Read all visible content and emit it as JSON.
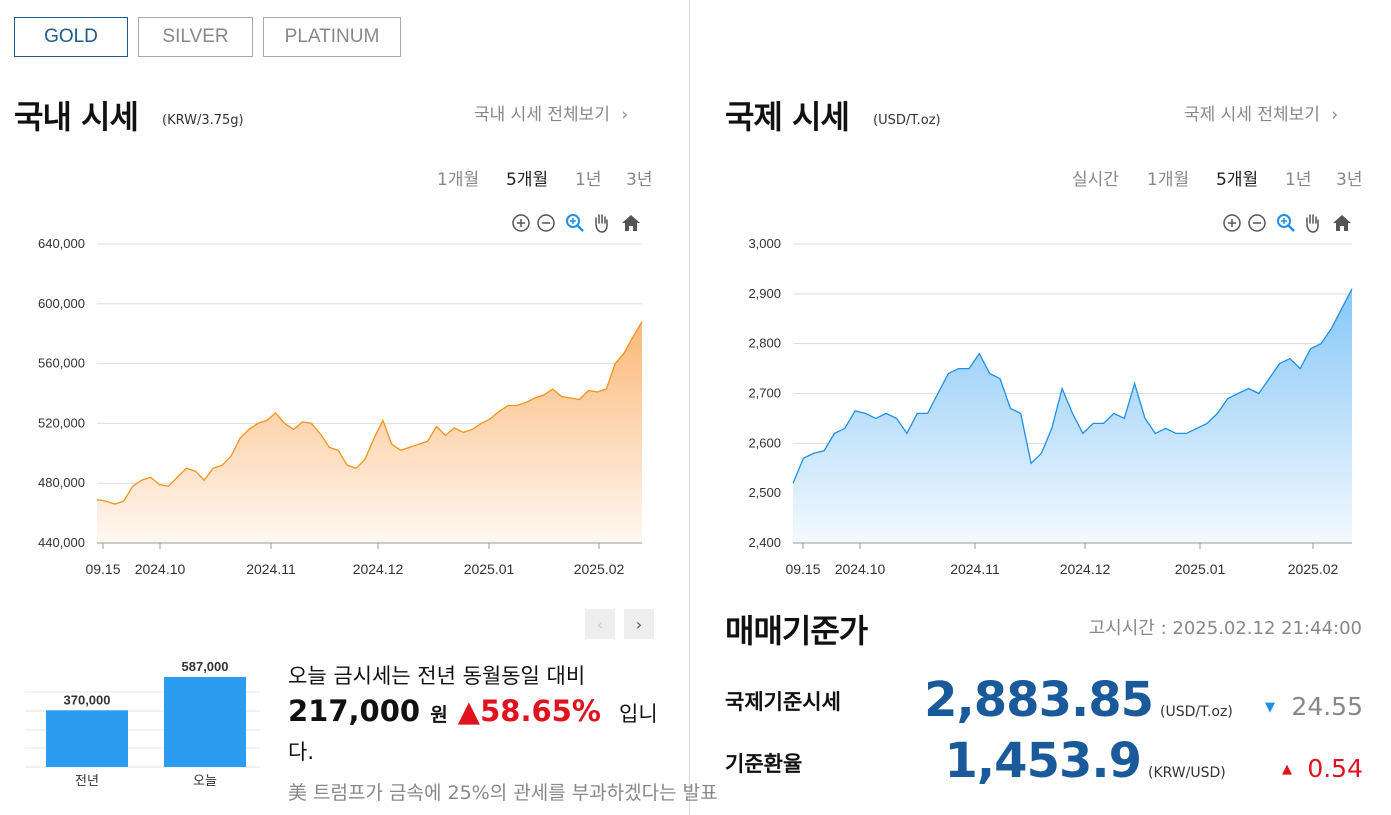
{
  "tabs": [
    "GOLD",
    "SILVER",
    "PLATINUM"
  ],
  "domestic": {
    "title": "국내 시세",
    "unit": "(KRW/3.75g)",
    "view_all": "국내 시세 전체보기",
    "ranges": [
      "1개월",
      "5개월",
      "1년",
      "3년"
    ],
    "selected_range": "5개월"
  },
  "international": {
    "title": "국제 시세",
    "unit": "(USD/T.oz)",
    "view_all": "국제 시세 전체보기",
    "ranges": [
      "실시간",
      "1개월",
      "5개월",
      "1년",
      "3년"
    ],
    "selected_range": "5개월"
  },
  "chart_tools": [
    "zoom-in-icon",
    "zoom-out-icon",
    "magnifier-icon",
    "pan-hand-icon",
    "home-icon"
  ],
  "comparison": {
    "bars": [
      {
        "label": "전년",
        "value": 370000,
        "display": "370,000"
      },
      {
        "label": "오늘",
        "value": 587000,
        "display": "587,000"
      }
    ],
    "sentence_1": "오늘 금시세는 전년 동월동일 대비",
    "diff": "217,000",
    "won": "원",
    "pct": "▲58.65%",
    "tail": "입니",
    "tail2": "다.",
    "news": "美 트럼프가 금속에 25%의 관세를 부과하겠다는 발표"
  },
  "base_price": {
    "title": "매매기준가",
    "notice": "고시시간 : 2025.02.12 21:44:00",
    "rows": [
      {
        "label": "국제기준시세",
        "value": "2,883.85",
        "unit": "(USD/T.oz)",
        "arrow": "▼",
        "change": "24.55",
        "dir": "down"
      },
      {
        "label": "기준환율",
        "value": "1,453.9",
        "unit": "(KRW/USD)",
        "arrow": "▲",
        "change": "0.54",
        "dir": "up"
      }
    ]
  },
  "colors": {
    "accent": "#1e5a8c",
    "orange": "#f5921e",
    "blue_line": "#1e90e6",
    "up": "#e0121e",
    "down": "#1e90e6",
    "bar": "#2c9cf0"
  },
  "chart_data": [
    {
      "type": "area",
      "title": "",
      "ylabel": "",
      "ylim": [
        440000,
        640000
      ],
      "y_ticks": [
        "640,000",
        "600,000",
        "560,000",
        "520,000",
        "480,000",
        "440,000"
      ],
      "x_ticks": [
        "09.15",
        "2024.10",
        "2024.11",
        "2024.12",
        "2025.01",
        "2025.02"
      ],
      "series": [
        {
          "values": [
            469000,
            468000,
            466000,
            468000,
            478000,
            482000,
            484000,
            479000,
            478000,
            484000,
            490000,
            488000,
            482000,
            490000,
            492000,
            498000,
            510000,
            516000,
            520000,
            522000,
            527000,
            520000,
            516000,
            521000,
            520000,
            513000,
            504000,
            502000,
            492000,
            490000,
            496000,
            510000,
            522000,
            506000,
            502000,
            504000,
            506000,
            508000,
            518000,
            512000,
            517000,
            514000,
            516000,
            520000,
            523000,
            528000,
            532000,
            532000,
            534000,
            537000,
            539000,
            543000,
            538000,
            537000,
            536000,
            542000,
            541000,
            543000,
            560000,
            567000,
            578000,
            588000
          ]
        }
      ]
    },
    {
      "type": "area",
      "title": "",
      "ylabel": "",
      "ylim": [
        2400,
        3000
      ],
      "y_ticks": [
        "3,000",
        "2,900",
        "2,800",
        "2,700",
        "2,600",
        "2,500",
        "2,400"
      ],
      "x_ticks": [
        "09.15",
        "2024.10",
        "2024.11",
        "2024.12",
        "2025.01",
        "2025.02"
      ],
      "series": [
        {
          "values": [
            2520,
            2570,
            2580,
            2585,
            2620,
            2630,
            2665,
            2660,
            2650,
            2660,
            2650,
            2620,
            2660,
            2660,
            2700,
            2740,
            2750,
            2750,
            2780,
            2740,
            2730,
            2670,
            2660,
            2560,
            2580,
            2630,
            2710,
            2660,
            2620,
            2640,
            2640,
            2660,
            2650,
            2720,
            2650,
            2620,
            2630,
            2620,
            2620,
            2630,
            2640,
            2660,
            2690,
            2700,
            2710,
            2700,
            2730,
            2760,
            2770,
            2750,
            2790,
            2800,
            2830,
            2870,
            2910
          ]
        }
      ]
    }
  ]
}
